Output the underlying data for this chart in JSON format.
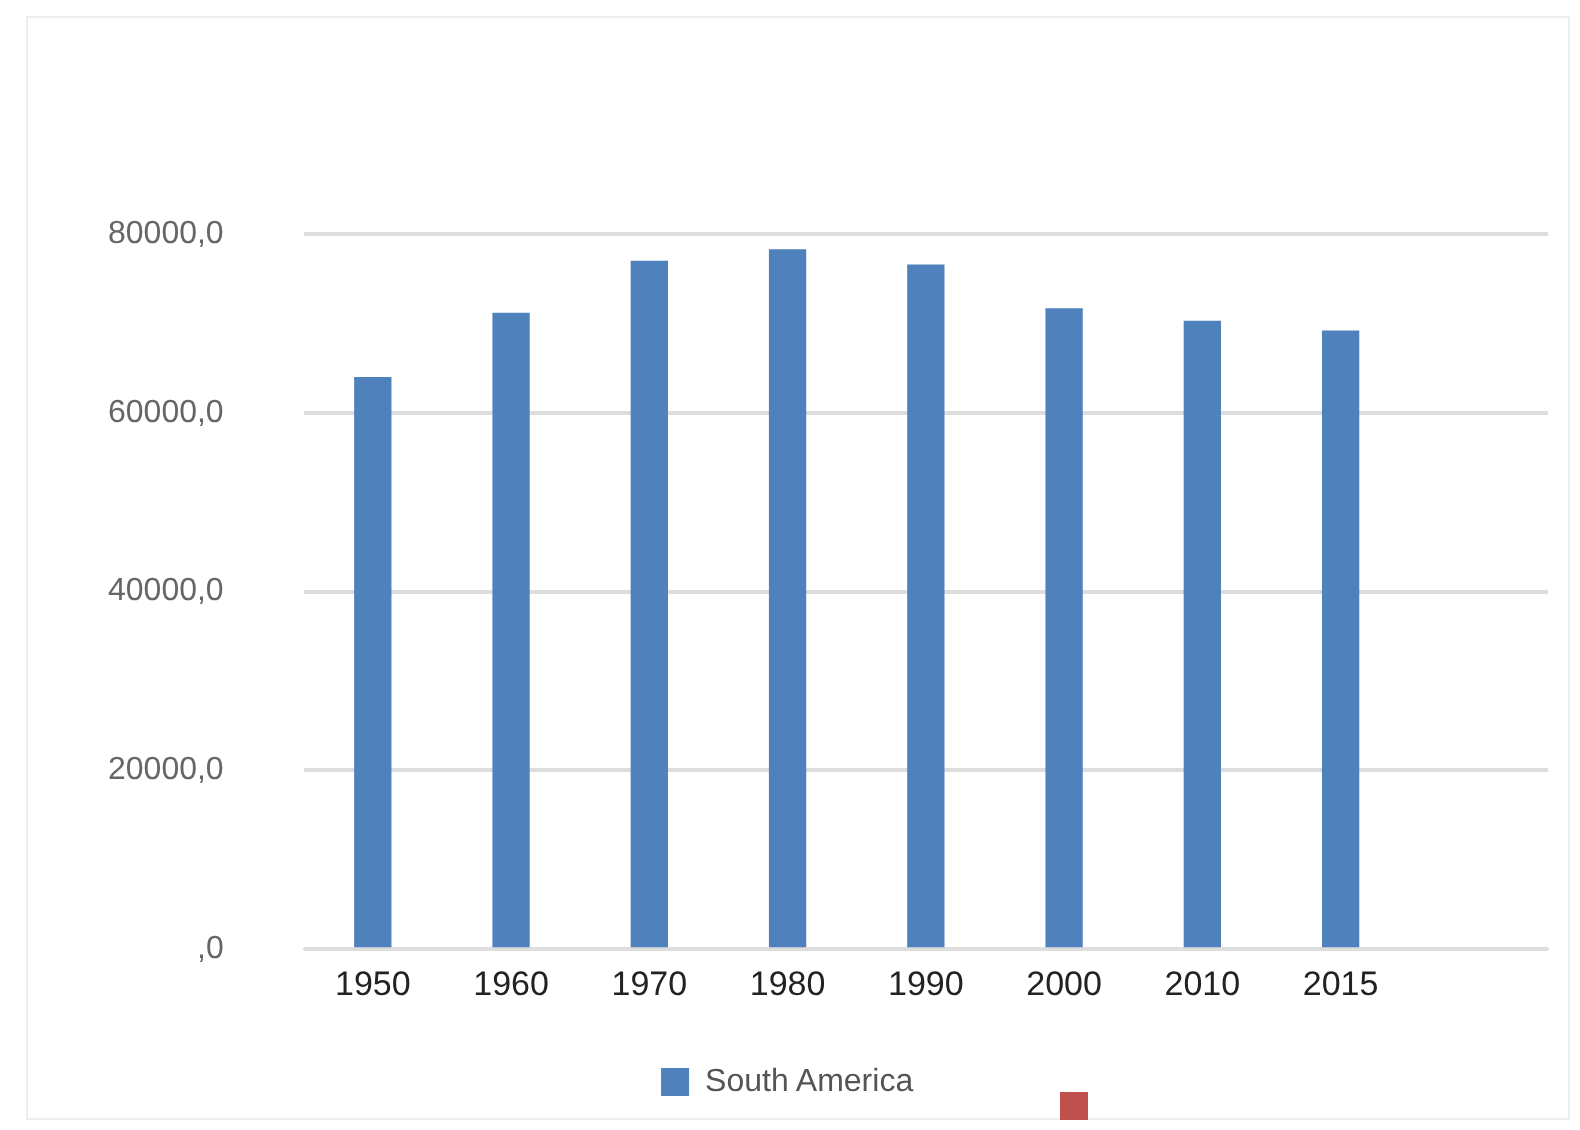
{
  "chart_data": {
    "type": "bar",
    "categories": [
      "1950",
      "1960",
      "1970",
      "1980",
      "1990",
      "2000",
      "2010",
      "2015",
      null
    ],
    "series": [
      {
        "name": "South America",
        "color": "#4f81bd",
        "values": [
          64000,
          71200,
          77000,
          78300,
          76600,
          71700,
          70300,
          69200,
          null
        ]
      }
    ],
    "ylim": [
      0,
      80000
    ],
    "yticks": [
      {
        "value": 0,
        "label": ",0"
      },
      {
        "value": 20000,
        "label": "20000,0"
      },
      {
        "value": 40000,
        "label": "40000,0"
      },
      {
        "value": 60000,
        "label": "60000,0"
      },
      {
        "value": 80000,
        "label": "80000,0"
      }
    ],
    "grid": "y",
    "legend": "bottom"
  }
}
